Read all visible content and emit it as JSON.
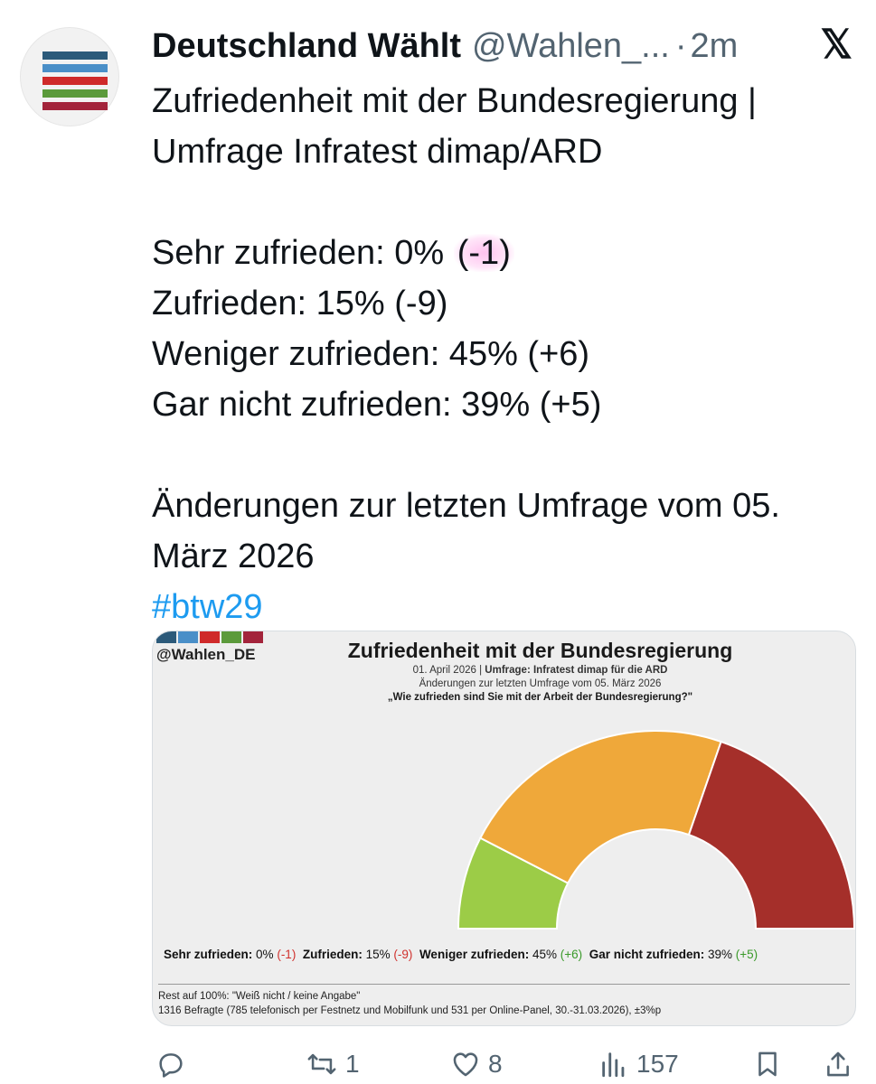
{
  "author": {
    "name": "Deutschland Wählt",
    "handle": "@Wahlen_...",
    "time": "2m",
    "avatar_colors": [
      "#2c5a7a",
      "#4a8fc8",
      "#cf2a2a",
      "#5b9a3b",
      "#a3243b"
    ]
  },
  "tweet": {
    "line1": "Zufriedenheit mit der Bundesregierung |",
    "line2": "Umfrage Infratest dimap/ARD",
    "results": [
      {
        "label": "Sehr zufrieden: 0% ",
        "change": "(-1)"
      },
      {
        "label": "Zufrieden: 15% (-9)",
        "change": ""
      },
      {
        "label": "Weniger zufrieden: 45% (+6)",
        "change": ""
      },
      {
        "label": "Gar nicht zufrieden: 39% (+5)",
        "change": ""
      }
    ],
    "note_line1": "Änderungen zur letzten Umfrage vom 05.",
    "note_line2": "März 2026",
    "hashtag": "#btw29"
  },
  "card": {
    "handle": "@Wahlen_DE",
    "title": "Zufriedenheit mit der Bundesregierung",
    "date": "01. April 2026",
    "survey": "Umfrage: Infratest dimap für die ARD",
    "changes_note": "Änderungen zur letzten Umfrage vom 05. März 2026",
    "question": "„Wie zufrieden sind Sie mit der Arbeit der Bundesregierung?\"",
    "legend": [
      {
        "label": "Sehr zufrieden:",
        "value": "0%",
        "change": "-1"
      },
      {
        "label": "Zufrieden:",
        "value": "15%",
        "change": "-9"
      },
      {
        "label": "Weniger zufrieden:",
        "value": "45%",
        "change": "+6"
      },
      {
        "label": "Gar nicht zufrieden:",
        "value": "39%",
        "change": "+5"
      }
    ],
    "footer1": "Rest auf 100%: \"Weiß nicht / keine Angabe\"",
    "footer2": "1316 Befragte (785 telefonisch per Festnetz und Mobilfunk und 531 per Online-Panel, 30.-31.03.2026), ±3%p"
  },
  "chart_data": {
    "type": "pie",
    "variant": "semicircle",
    "categories": [
      "Sehr zufrieden",
      "Zufrieden",
      "Weniger zufrieden",
      "Gar nicht zufrieden"
    ],
    "values": [
      0,
      15,
      45,
      39
    ],
    "changes": [
      -1,
      -9,
      6,
      5
    ],
    "colors": [
      "#3d7d3a",
      "#9ccc47",
      "#efa83a",
      "#a52f2a"
    ]
  },
  "actions": {
    "reply_count": "",
    "retweet_count": "1",
    "like_count": "8",
    "views_count": "157"
  },
  "icons": [
    "x-logo-icon",
    "reply-icon",
    "retweet-icon",
    "like-icon",
    "views-icon",
    "bookmark-icon",
    "share-icon"
  ]
}
